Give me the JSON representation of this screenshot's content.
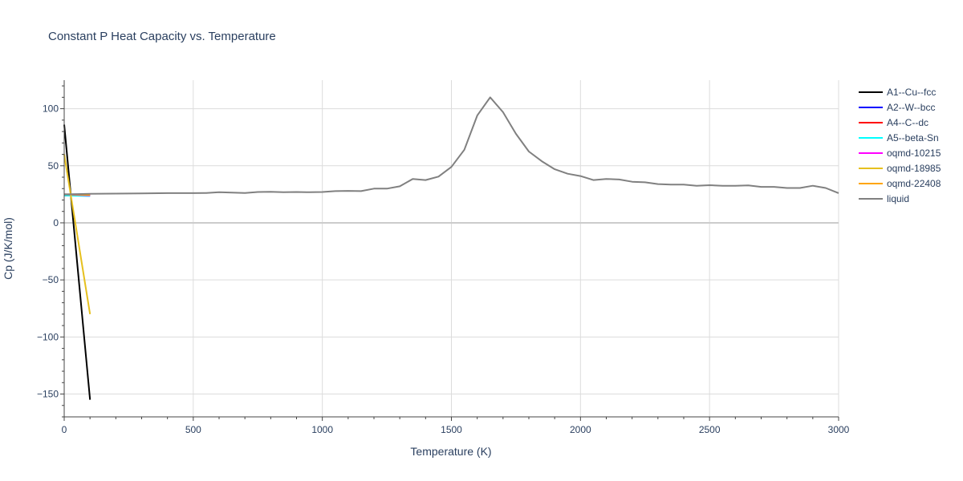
{
  "chart_data": {
    "type": "line",
    "title": "Constant P Heat Capacity vs. Temperature",
    "xlabel": "Temperature (K)",
    "ylabel": "Cp (J/K/mol)",
    "xlim": [
      0,
      3000
    ],
    "ylim": [
      -170,
      125
    ],
    "xticks": [
      0,
      500,
      1000,
      1500,
      2000,
      2500,
      3000
    ],
    "xtick_labels": [
      "0",
      "500",
      "1000",
      "1500",
      "2000",
      "2500",
      "3000"
    ],
    "yticks": [
      100,
      50,
      0,
      -50,
      -100,
      -150
    ],
    "ytick_labels": [
      "100",
      "50",
      "0",
      "−50",
      "−100",
      "−150"
    ],
    "grid": true,
    "legend_position": "top-right",
    "series": [
      {
        "name": "A1--Cu--fcc",
        "color": "#000000",
        "x": [
          0,
          100
        ],
        "y": [
          86,
          -155
        ]
      },
      {
        "name": "A2--W--bcc",
        "color": "#0000ff",
        "x": [
          0,
          100
        ],
        "y": [
          24,
          24
        ]
      },
      {
        "name": "A4--C--dc",
        "color": "#ff0000",
        "x": [
          0,
          100
        ],
        "y": [
          24,
          24
        ]
      },
      {
        "name": "A5--beta-Sn",
        "color": "#00ffff",
        "x": [
          0,
          100
        ],
        "y": [
          24,
          23.5
        ]
      },
      {
        "name": "oqmd-10215",
        "color": "#ff00ff",
        "x": [
          0,
          100
        ],
        "y": [
          25,
          24
        ]
      },
      {
        "name": "oqmd-18985",
        "color": "#e6c01e",
        "x": [
          0,
          100
        ],
        "y": [
          60,
          -80
        ]
      },
      {
        "name": "oqmd-22408",
        "color": "#ffa500",
        "x": [
          0,
          100
        ],
        "y": [
          25,
          24.5
        ]
      },
      {
        "name": "liquid",
        "color": "#808080",
        "x": [
          0,
          50,
          100,
          200,
          300,
          400,
          500,
          550,
          600,
          650,
          700,
          750,
          800,
          850,
          900,
          950,
          1000,
          1050,
          1100,
          1150,
          1200,
          1250,
          1300,
          1350,
          1400,
          1450,
          1500,
          1550,
          1600,
          1650,
          1700,
          1750,
          1800,
          1850,
          1900,
          1950,
          2000,
          2050,
          2100,
          2150,
          2200,
          2250,
          2300,
          2350,
          2400,
          2450,
          2500,
          2550,
          2600,
          2650,
          2700,
          2750,
          2800,
          2850,
          2900,
          2950,
          3000
        ],
        "y": [
          25,
          25.2,
          25.4,
          25.6,
          25.8,
          26,
          26,
          26.2,
          26.8,
          26.5,
          26.2,
          27,
          27.2,
          26.8,
          27,
          26.8,
          27,
          27.8,
          28,
          27.8,
          30,
          30,
          32,
          38.5,
          37.5,
          40.5,
          49,
          64,
          94,
          110,
          97,
          78,
          62.5,
          54,
          47,
          43,
          41,
          37.5,
          38.5,
          38,
          36,
          35.5,
          34,
          33.5,
          33.5,
          32.5,
          33,
          32.5,
          32.5,
          32.8,
          31.5,
          31.5,
          30.5,
          30.5,
          32.5,
          30.5,
          26
        ]
      }
    ]
  }
}
